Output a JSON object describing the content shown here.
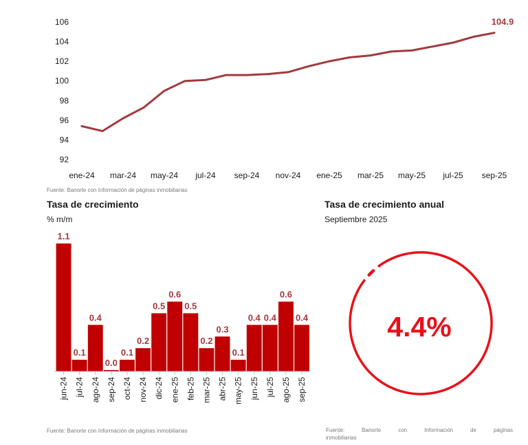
{
  "line_source": "Fuente: Banorte con Información de páginas inmobiliarias",
  "bar_source": "Fuente: Banorte con Información de páginas inmobiliarias",
  "gauge_source_line1": "Fuente: Banorte con Información de páginas",
  "gauge_source_line2": "inmobiliarias",
  "bar_title": "Tasa de crecimiento",
  "bar_subtitle": "% m/m",
  "gauge_title": "Tasa de crecimiento anual",
  "gauge_subtitle": "Septiembre 2025",
  "colors": {
    "line": "#a2393d",
    "bar": "#c00000",
    "label": "#a2393d",
    "gauge": "#e8111a"
  },
  "chart_data": [
    {
      "type": "line",
      "title": "",
      "x_ticks": [
        "ene-24",
        "mar-24",
        "may-24",
        "jul-24",
        "sep-24",
        "nov-24",
        "ene-25",
        "mar-25",
        "may-25",
        "jul-25",
        "sep-25"
      ],
      "x": [
        "ene-24",
        "feb-24",
        "mar-24",
        "abr-24",
        "may-24",
        "jun-24",
        "jul-24",
        "ago-24",
        "sep-24",
        "oct-24",
        "nov-24",
        "dic-24",
        "ene-25",
        "feb-25",
        "mar-25",
        "abr-25",
        "may-25",
        "jun-25",
        "jul-25",
        "ago-25",
        "sep-25"
      ],
      "values": [
        95.4,
        94.9,
        96.2,
        97.3,
        99.0,
        100.0,
        100.1,
        100.6,
        100.6,
        100.7,
        100.9,
        101.5,
        102.0,
        102.4,
        102.6,
        103.0,
        103.1,
        103.5,
        103.9,
        104.5,
        104.9
      ],
      "last_label": "104.9",
      "ylim": [
        92,
        106
      ],
      "y_ticks": [
        "92",
        "94",
        "96",
        "98",
        "100",
        "102",
        "104",
        "106"
      ],
      "grid": false
    },
    {
      "type": "bar",
      "title": "Tasa de crecimiento",
      "ylabel": "% m/m",
      "categories": [
        "jun-24",
        "jul-24",
        "ago-24",
        "sep-24",
        "oct-24",
        "nov-24",
        "dic-24",
        "ene-25",
        "feb-25",
        "mar-25",
        "abr-25",
        "may-25",
        "jun-25",
        "jul-25",
        "ago-25",
        "sep-25"
      ],
      "values": [
        1.1,
        0.1,
        0.4,
        0.0,
        0.1,
        0.2,
        0.5,
        0.6,
        0.5,
        0.2,
        0.3,
        0.1,
        0.4,
        0.4,
        0.6,
        0.4
      ],
      "labels": [
        "1.1",
        "0.1",
        "0.4",
        "0.0",
        "0.1",
        "0.2",
        "0.5",
        "0.6",
        "0.5",
        "0.2",
        "0.3",
        "0.1",
        "0.4",
        "0.4",
        "0.6",
        "0.4"
      ],
      "ylim": [
        0,
        1.1
      ]
    },
    {
      "type": "gauge",
      "title": "Tasa de crecimiento anual",
      "subtitle": "Septiembre 2025",
      "value": 4.4,
      "label": "4.4%"
    }
  ]
}
